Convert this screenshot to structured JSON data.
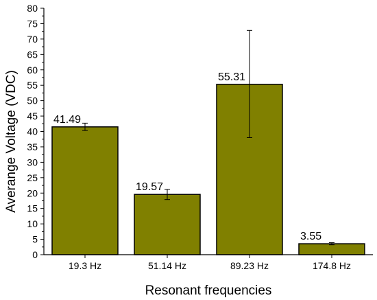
{
  "chart_data": {
    "type": "bar",
    "categories": [
      "19.3 Hz",
      "51.14 Hz",
      "89.23 Hz",
      "174.8 Hz"
    ],
    "values": [
      41.49,
      19.57,
      55.31,
      3.55
    ],
    "data_labels": [
      "41.49",
      "19.57",
      "55.31",
      "3.55"
    ],
    "error_low": [
      40.3,
      17.9,
      38.0,
      3.2
    ],
    "error_high": [
      42.7,
      21.2,
      72.8,
      3.9
    ],
    "title": "",
    "xlabel": "Resonant frequencies",
    "ylabel": "Averange Voltage (VDC)",
    "ylim": [
      0,
      80
    ],
    "yticks": [
      "0",
      "5",
      "10",
      "15",
      "20",
      "25",
      "30",
      "35",
      "40",
      "45",
      "50",
      "55",
      "60",
      "65",
      "70",
      "75",
      "80"
    ],
    "grid": false,
    "legend": "none",
    "colors": {
      "bar_fill": "#808000",
      "bar_stroke": "#000000",
      "axis": "#000000"
    }
  }
}
